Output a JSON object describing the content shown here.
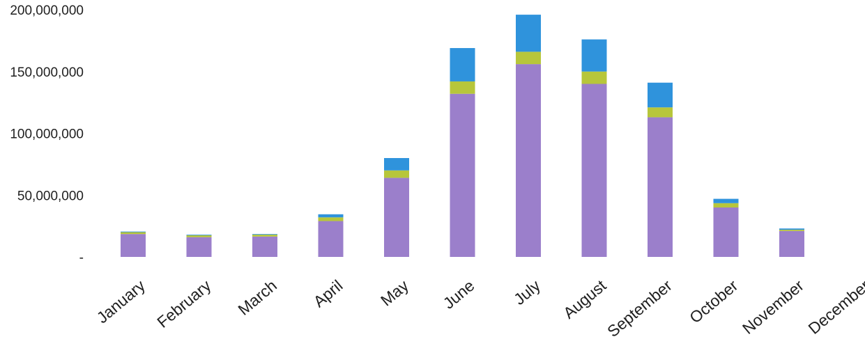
{
  "chart_data": {
    "type": "bar",
    "stacked": true,
    "title": "",
    "xlabel": "",
    "ylabel": "",
    "categories": [
      "January",
      "February",
      "March",
      "April",
      "May",
      "June",
      "July",
      "August",
      "September",
      "October",
      "November",
      "December"
    ],
    "series": [
      {
        "color": "#9b7fcb",
        "values": [
          18500000,
          16000000,
          16500000,
          29000000,
          64000000,
          132000000,
          156000000,
          140000000,
          113000000,
          40000000,
          21000000,
          0
        ]
      },
      {
        "color": "#b7c63b",
        "values": [
          1500000,
          1500000,
          1500000,
          3000000,
          6000000,
          10000000,
          10000000,
          10000000,
          8000000,
          3500000,
          1000000,
          0
        ]
      },
      {
        "color": "#2f93dc",
        "values": [
          500000,
          500000,
          500000,
          2500000,
          10000000,
          27000000,
          30000000,
          26000000,
          20000000,
          3500000,
          1000000,
          0
        ]
      }
    ],
    "y_ticks": [
      "200,000,000",
      "150,000,000",
      "100,000,000",
      "50,000,000",
      "-"
    ],
    "y_tick_values": [
      200000000,
      150000000,
      100000000,
      50000000,
      0
    ],
    "ylim": [
      0,
      200000000
    ],
    "grid": false,
    "legend": "none"
  }
}
